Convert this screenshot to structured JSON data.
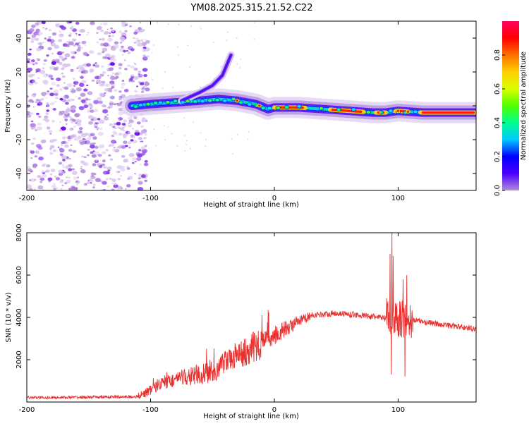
{
  "title": "YM08.2025.315.21.52.C22",
  "colors": {
    "snr_line": "#e8312f",
    "axis": "#000000"
  },
  "chart_data": [
    {
      "type": "heatmap",
      "name": "spectrogram",
      "xlabel": "Height of straight line (km)",
      "ylabel": "Frequency (Hz)",
      "xlim": [
        -200,
        163
      ],
      "ylim": [
        -50,
        50
      ],
      "x_ticks": [
        "-200",
        "-100",
        "0",
        "100"
      ],
      "x_tick_values": [
        -200,
        -100,
        0,
        100
      ],
      "y_ticks": [
        "-40",
        "-20",
        "0",
        "20",
        "40"
      ],
      "y_tick_values": [
        -40,
        -20,
        0,
        20,
        40
      ],
      "noise_region_x": [
        -200,
        -105
      ],
      "ridge": {
        "x": [
          -115,
          -100,
          -80,
          -60,
          -45,
          -30,
          -15,
          -5,
          0,
          20,
          40,
          60,
          80,
          90,
          100,
          120,
          140,
          163
        ],
        "freq": [
          0,
          1,
          2,
          3,
          4,
          3,
          1,
          -2,
          -1,
          -1,
          -2,
          -3,
          -4,
          -4,
          -3,
          -4,
          -4,
          -4
        ]
      },
      "branch": {
        "x": [
          -75,
          -60,
          -50,
          -42,
          -35
        ],
        "freq": [
          3,
          8,
          12,
          18,
          30
        ]
      },
      "colorbar": {
        "label": "Normalized spectral amplitude",
        "ticks": [
          "0.0",
          "0.2",
          "0.4",
          "0.6",
          "0.8"
        ],
        "tick_values": [
          0.0,
          0.2,
          0.4,
          0.6,
          0.8
        ],
        "range": [
          0,
          1
        ],
        "stops": [
          "#b08ad8",
          "#4b00ff",
          "#0000ff",
          "#00c8ff",
          "#00ff90",
          "#50ff00",
          "#d8ff00",
          "#ffd000",
          "#ff7000",
          "#ff0000",
          "#ff0060"
        ]
      }
    },
    {
      "type": "line",
      "name": "snr",
      "xlabel": "Height of straight line (km)",
      "ylabel": "SNR (10 * v/v)",
      "xlim": [
        -200,
        163
      ],
      "ylim": [
        0,
        8000
      ],
      "x_ticks": [
        "-200",
        "-100",
        "0",
        "100"
      ],
      "x_tick_values": [
        -200,
        -100,
        0,
        100
      ],
      "y_ticks": [
        "2000",
        "4000",
        "6000",
        "8000"
      ],
      "y_tick_values": [
        2000,
        4000,
        6000,
        8000
      ],
      "baseline_profile": {
        "x": [
          -200,
          -110,
          -90,
          -70,
          -50,
          -30,
          -10,
          10,
          30,
          50,
          70,
          85,
          95,
          110,
          130,
          163
        ],
        "y": [
          200,
          250,
          900,
          1200,
          1400,
          2200,
          2800,
          3500,
          4100,
          4200,
          4100,
          4000,
          3900,
          3900,
          3700,
          3450
        ]
      },
      "spikes": [
        {
          "x": 93.5,
          "y": 7000
        },
        {
          "x": 94.5,
          "y": 1300
        },
        {
          "x": 95.0,
          "y": 8000
        },
        {
          "x": 96.0,
          "y": 6900
        },
        {
          "x": 104.0,
          "y": 5800
        },
        {
          "x": 105.5,
          "y": 1200
        },
        {
          "x": 107.0,
          "y": 6000
        },
        {
          "x": -10.0,
          "y": 4100
        },
        {
          "x": -5.0,
          "y": 4350
        }
      ]
    }
  ]
}
